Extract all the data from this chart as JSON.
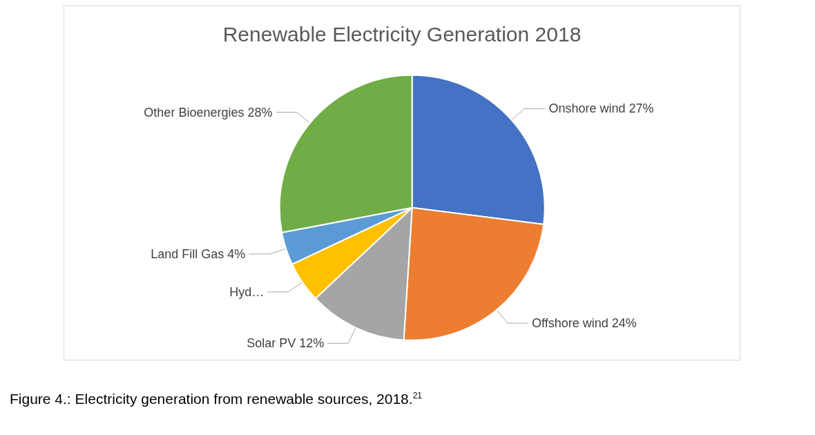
{
  "chart_data": {
    "type": "pie",
    "title": "Renewable Electricity Generation 2018",
    "categories": [
      "Onshore wind",
      "Offshore wind",
      "Solar PV",
      "Hyd…",
      "Land Fill Gas",
      "Other Bioenergies"
    ],
    "values": [
      27,
      24,
      12,
      5,
      4,
      28
    ],
    "value_labels": [
      "27%",
      "24%",
      "12%",
      null,
      "4%",
      "28%"
    ],
    "colors": [
      "#4472c4",
      "#ed7d31",
      "#a5a5a5",
      "#ffc000",
      "#5b9bd5",
      "#70ad47"
    ],
    "legend": false,
    "annotations": [
      "Figure 4.: Electricity generation from renewable sources, 2018.$^{21}$"
    ]
  }
}
